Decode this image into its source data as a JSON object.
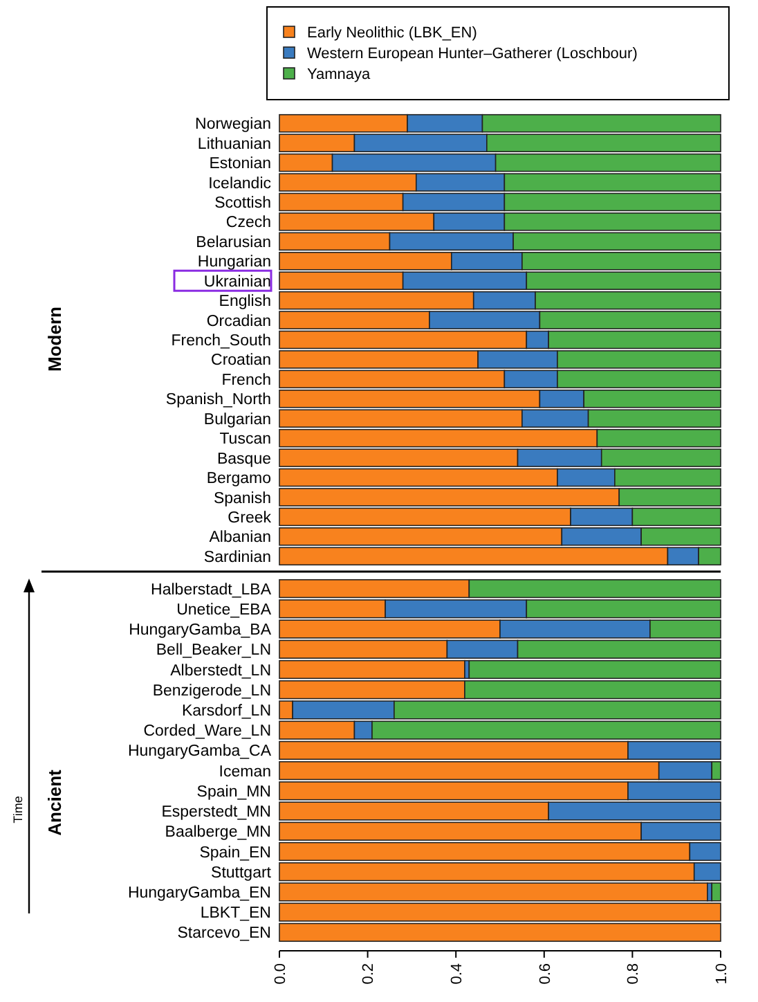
{
  "chart_data": [
    {
      "type": "bar",
      "orientation": "horizontal",
      "stacked": true,
      "ylabel": "Modern",
      "legend": "top",
      "tick_labels": "y",
      "categories": [
        "Norwegian",
        "Lithuanian",
        "Estonian",
        "Icelandic",
        "Scottish",
        "Czech",
        "Belarusian",
        "Hungarian",
        "Ukrainian",
        "English",
        "Orcadian",
        "French_South",
        "Croatian",
        "French",
        "Spanish_North",
        "Bulgarian",
        "Tuscan",
        "Basque",
        "Bergamo",
        "Spanish",
        "Greek",
        "Albanian",
        "Sardinian"
      ],
      "xlim": [
        0,
        1
      ],
      "series": [
        {
          "name": "Early Neolithic (LBK_EN)",
          "color": "#f8821e",
          "values": [
            0.29,
            0.17,
            0.12,
            0.31,
            0.28,
            0.35,
            0.25,
            0.39,
            0.28,
            0.44,
            0.34,
            0.56,
            0.45,
            0.51,
            0.59,
            0.55,
            0.72,
            0.54,
            0.63,
            0.77,
            0.66,
            0.64,
            0.88
          ]
        },
        {
          "name": "Western European Hunter–Gatherer (Loschbour)",
          "color": "#3a7bbf",
          "values": [
            0.17,
            0.3,
            0.37,
            0.2,
            0.23,
            0.16,
            0.28,
            0.16,
            0.28,
            0.14,
            0.25,
            0.05,
            0.18,
            0.12,
            0.1,
            0.15,
            0,
            0.19,
            0.13,
            0,
            0.14,
            0.18,
            0.07
          ]
        },
        {
          "name": "Yamnaya",
          "color": "#4daf4a",
          "values": [
            0.54,
            0.53,
            0.51,
            0.49,
            0.49,
            0.49,
            0.47,
            0.45,
            0.44,
            0.42,
            0.41,
            0.39,
            0.37,
            0.37,
            0.31,
            0.3,
            0.28,
            0.27,
            0.24,
            0.23,
            0.2,
            0.18,
            0.05
          ]
        }
      ]
    },
    {
      "type": "bar",
      "orientation": "horizontal",
      "stacked": true,
      "ylabel": "Ancient",
      "annotations": [
        "Time"
      ],
      "categories": [
        "Halberstadt_LBA",
        "Unetice_EBA",
        "HungaryGamba_BA",
        "Bell_Beaker_LN",
        "Alberstedt_LN",
        "Benzigerode_LN",
        "Karsdorf_LN",
        "Corded_Ware_LN",
        "HungaryGamba_CA",
        "Iceman",
        "Spain_MN",
        "Esperstedt_MN",
        "Baalberge_MN",
        "Spain_EN",
        "Stuttgart",
        "HungaryGamba_EN",
        "LBKT_EN",
        "Starcevo_EN"
      ],
      "xlim": [
        0,
        1
      ],
      "xticks": [
        {
          "value": 0,
          "label": "0.0"
        },
        {
          "value": 0.2,
          "label": "0.2"
        },
        {
          "value": 0.4,
          "label": "0.4"
        },
        {
          "value": 0.6,
          "label": "0.6"
        },
        {
          "value": 0.8,
          "label": "0.8"
        },
        {
          "value": 1,
          "label": "1.0"
        }
      ],
      "series": [
        {
          "color": "#f8821e",
          "values": [
            0.43,
            0.24,
            0.5,
            0.38,
            0.42,
            0.42,
            0.03,
            0.17,
            0.79,
            0.86,
            0.79,
            0.61,
            0.82,
            0.93,
            0.94,
            0.97,
            1,
            1
          ]
        },
        {
          "color": "#3a7bbf",
          "values": [
            0,
            0.32,
            0.34,
            0.16,
            0.01,
            0,
            0.23,
            0.04,
            0.21,
            0.12,
            0.21,
            0.39,
            0.18,
            0.07,
            0.06,
            0.01,
            0,
            0
          ]
        },
        {
          "color": "#4daf4a",
          "values": [
            0.57,
            0.44,
            0.16,
            0.46,
            0.57,
            0.58,
            0.74,
            0.79,
            0,
            0.02,
            0,
            0,
            0,
            0,
            0,
            0.02,
            0,
            0
          ]
        }
      ]
    }
  ]
}
